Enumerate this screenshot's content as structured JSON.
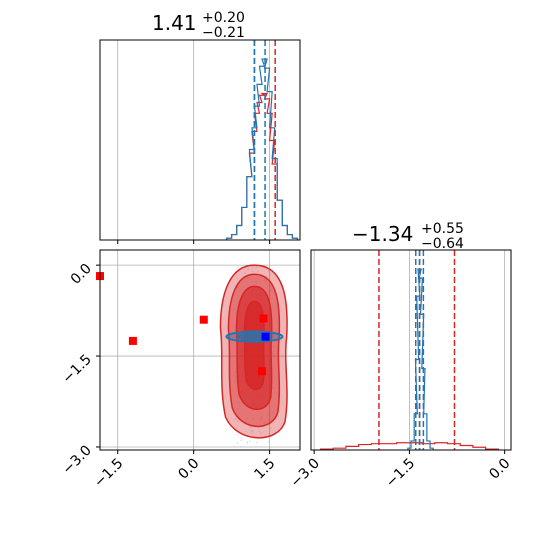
{
  "colors": {
    "red": "#d62728",
    "blue": "#1f77b4",
    "marker_red": "#ff0000",
    "marker_blue": "#0000ff",
    "grid": "#b0b0b0",
    "axis": "#000000"
  },
  "chart_data": [
    {
      "panel": "top-left",
      "type": "histogram",
      "title": {
        "median": "1.41",
        "plus": "+0.20",
        "minus": "−0.21"
      },
      "xlim": [
        -1.85,
        2.1
      ],
      "x_ticks": [
        -1.5,
        0.0,
        1.5
      ],
      "grid": true,
      "series": [
        {
          "color": "#1f77b4",
          "x": [
            0.7,
            0.8,
            0.9,
            1.0,
            1.1,
            1.15,
            1.2,
            1.25,
            1.3,
            1.35,
            1.4,
            1.45,
            1.5,
            1.55,
            1.6,
            1.7,
            1.8,
            1.9,
            2.0
          ],
          "y": [
            0.01,
            0.03,
            0.08,
            0.18,
            0.35,
            0.5,
            0.62,
            0.74,
            0.86,
            0.96,
            1.0,
            0.95,
            0.82,
            0.62,
            0.45,
            0.22,
            0.08,
            0.03,
            0.01
          ],
          "quantiles": [
            1.2,
            1.41
          ]
        },
        {
          "color": "#d62728",
          "x": [
            0.7,
            0.8,
            0.9,
            1.0,
            1.1,
            1.15,
            1.2,
            1.25,
            1.3,
            1.35,
            1.4,
            1.45,
            1.5,
            1.55,
            1.6,
            1.7,
            1.8,
            1.9,
            2.0
          ],
          "y": [
            0.01,
            0.03,
            0.08,
            0.18,
            0.35,
            0.48,
            0.6,
            0.7,
            0.76,
            0.8,
            0.81,
            0.78,
            0.7,
            0.55,
            0.42,
            0.22,
            0.08,
            0.03,
            0.01
          ],
          "quantiles": [
            1.2,
            1.61
          ]
        }
      ]
    },
    {
      "panel": "bottom-left",
      "type": "scatter-contour",
      "xlim": [
        -1.85,
        2.1
      ],
      "ylim": [
        -3.05,
        0.25
      ],
      "x_ticks": [
        -1.5,
        0.0,
        1.5
      ],
      "y_ticks": [
        0.0,
        -1.5,
        -3.0
      ],
      "grid": true,
      "red_markers": [
        {
          "x": -1.85,
          "y": -0.18
        },
        {
          "x": -1.2,
          "y": -1.25
        },
        {
          "x": 0.2,
          "y": -0.9
        },
        {
          "x": 1.38,
          "y": -0.88
        },
        {
          "x": 1.35,
          "y": -1.75
        }
      ],
      "blue_marker": {
        "x": 1.42,
        "y": -1.18
      }
    },
    {
      "panel": "bottom-right",
      "type": "histogram",
      "title": {
        "median": "−1.34",
        "plus": "+0.55",
        "minus": "−0.64"
      },
      "xlim": [
        -3.05,
        0.1
      ],
      "x_ticks": [
        -3.0,
        -1.5,
        0.0
      ],
      "grid": true,
      "series": [
        {
          "color": "#1f77b4",
          "x": [
            -1.5,
            -1.45,
            -1.4,
            -1.38,
            -1.36,
            -1.34,
            -1.32,
            -1.3,
            -1.28,
            -1.25,
            -1.2,
            -1.15
          ],
          "y": [
            0.01,
            0.05,
            0.2,
            0.5,
            0.85,
            1.0,
            0.95,
            0.75,
            0.45,
            0.2,
            0.05,
            0.01
          ],
          "quantiles": [
            -1.4,
            -1.34,
            -1.28
          ]
        },
        {
          "color": "#d62728",
          "x": [
            -2.8,
            -2.6,
            -2.4,
            -2.2,
            -2.0,
            -1.8,
            -1.6,
            -1.4,
            -1.2,
            -1.0,
            -0.8,
            -0.6,
            -0.4,
            -0.2
          ],
          "y": [
            0.005,
            0.01,
            0.02,
            0.03,
            0.035,
            0.035,
            0.04,
            0.04,
            0.035,
            0.04,
            0.035,
            0.025,
            0.015,
            0.005
          ],
          "quantiles": [
            -1.98,
            -1.34,
            -0.79
          ]
        }
      ]
    }
  ]
}
